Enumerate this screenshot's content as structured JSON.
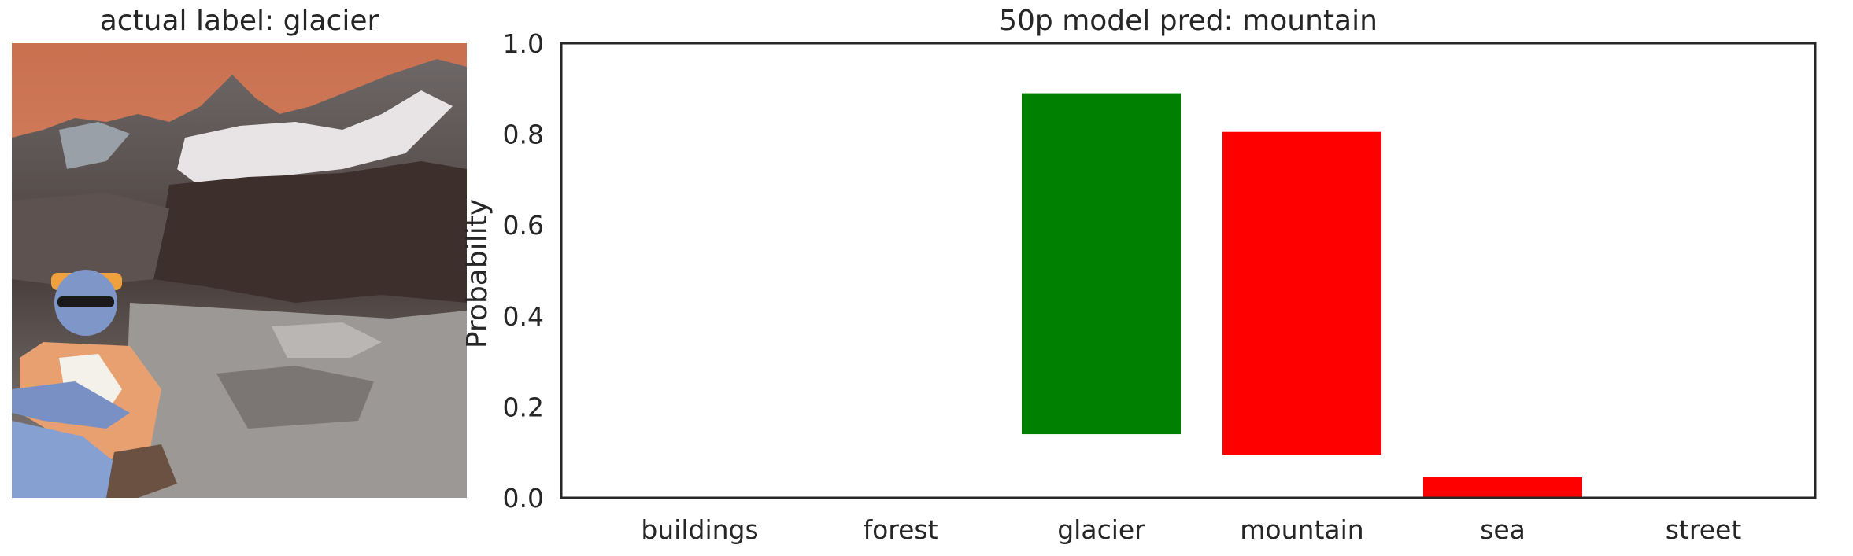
{
  "image_panel": {
    "title": "actual label: glacier",
    "image_description": "mountain landscape photo with snowy rocky peaks under orange sky; person with sunglasses and headband sitting in foreground"
  },
  "chart_data": {
    "type": "bar",
    "title": "50p model pred: mountain",
    "xlabel": "",
    "ylabel": "Probability",
    "ylim": [
      0,
      1.0
    ],
    "yticks": [
      "0.0",
      "0.2",
      "0.4",
      "0.6",
      "0.8",
      "1.0"
    ],
    "categories": [
      "buildings",
      "forest",
      "glacier",
      "mountain",
      "sea",
      "street"
    ],
    "bars": [
      {
        "category": "buildings",
        "bottom": 0,
        "top": 0,
        "color": "#ff0000"
      },
      {
        "category": "forest",
        "bottom": 0,
        "top": 0,
        "color": "#ff0000"
      },
      {
        "category": "glacier",
        "bottom": 0.14,
        "top": 0.89,
        "color": "#008000"
      },
      {
        "category": "mountain",
        "bottom": 0.095,
        "top": 0.805,
        "color": "#ff0000"
      },
      {
        "category": "sea",
        "bottom": 0.0,
        "top": 0.045,
        "color": "#ff0000"
      },
      {
        "category": "street",
        "bottom": 0,
        "top": 0,
        "color": "#ff0000"
      }
    ],
    "grid": false,
    "legend": "none"
  }
}
